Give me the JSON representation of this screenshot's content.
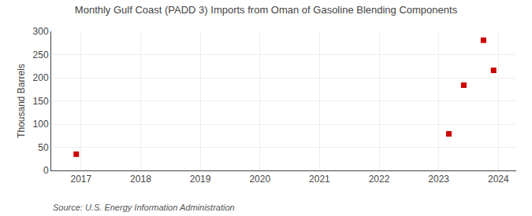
{
  "chart_data": {
    "type": "scatter",
    "title": "Monthly Gulf Coast (PADD 3) Imports from Oman of Gasoline Blending Components",
    "ylabel": "Thousand Barrels",
    "annotations": [
      "Source: U.S. Energy Information Administration"
    ],
    "x": [
      2016.92,
      2023.17,
      2023.42,
      2023.75,
      2023.92
    ],
    "values": [
      35,
      79,
      184,
      281,
      216
    ],
    "color": "#cc0000",
    "marker": "square",
    "xlim": [
      2016.5,
      2024.3
    ],
    "ylim": [
      0,
      300
    ],
    "xticks": [
      2017,
      2018,
      2019,
      2020,
      2021,
      2022,
      2023,
      2024
    ],
    "yticks": [
      0,
      50,
      100,
      150,
      200,
      250,
      300
    ],
    "grid": true
  }
}
